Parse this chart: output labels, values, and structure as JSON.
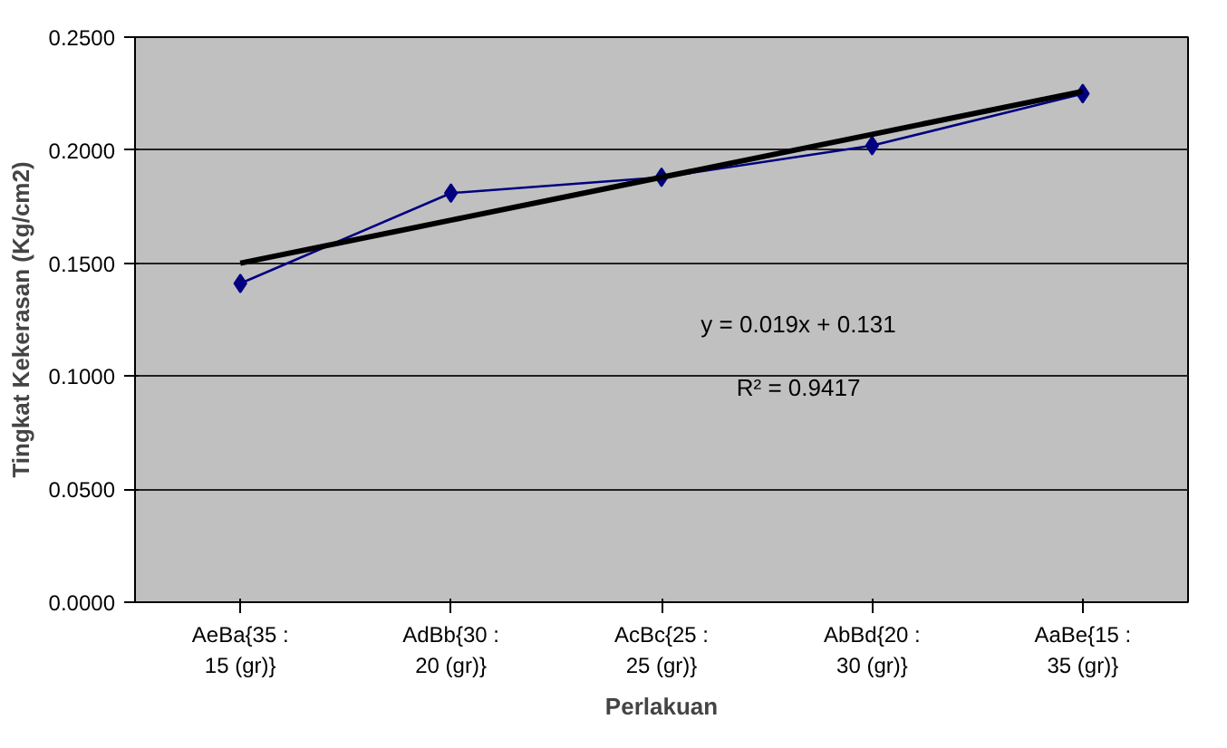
{
  "chart_data": {
    "type": "line",
    "xlabel": "Perlakuan",
    "ylabel": "Tingkat Kekerasan (Kg/cm2)",
    "categories": [
      "AeBa{35 : 15 (gr)}",
      "AdBb{30 : 20 (gr)}",
      "AcBc{25 : 25 (gr)}",
      "AbBd{20 : 30 (gr)}",
      "AaBe{15 : 35 (gr)}"
    ],
    "series": [
      {
        "color": "#000080",
        "values": [
          0.141,
          0.181,
          0.188,
          0.202,
          0.225
        ],
        "marker": "diamond"
      },
      {
        "type": "line",
        "color": "#000000",
        "values": [
          0.15,
          0.169,
          0.188,
          0.207,
          0.226
        ],
        "marker": "none"
      }
    ],
    "ylim": [
      0,
      0.25
    ],
    "yticks": [
      {
        "value": 0,
        "label": "0.0000"
      },
      {
        "value": 0.05,
        "label": "0.0500"
      },
      {
        "value": 0.1,
        "label": "0.1000"
      },
      {
        "value": 0.15,
        "label": "0.1500"
      },
      {
        "value": 0.2,
        "label": "0.2000"
      },
      {
        "value": 0.25,
        "label": "0.2500"
      }
    ],
    "grid": "y",
    "annotations": [
      "y = 0.019x + 0.131",
      "R² = 0.9417"
    ]
  }
}
